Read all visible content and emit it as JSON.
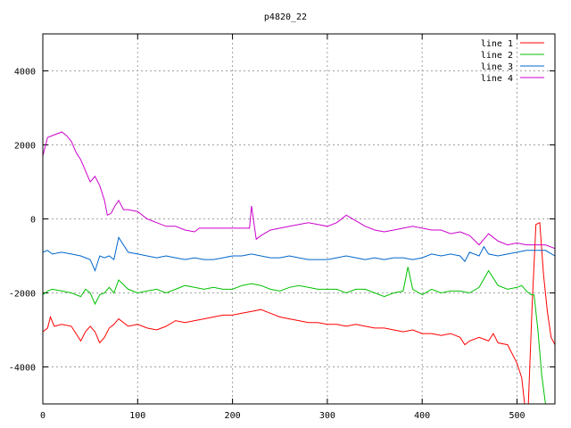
{
  "chart_data": {
    "type": "line",
    "title": "p4820_22",
    "xlabel": "",
    "ylabel": "",
    "xlim": [
      0,
      540
    ],
    "ylim": [
      -5000,
      5000
    ],
    "x_ticks": [
      0,
      100,
      200,
      300,
      400,
      500
    ],
    "y_ticks": [
      -4000,
      -2000,
      0,
      2000,
      4000
    ],
    "grid": true,
    "legend_position": "top-right",
    "series": [
      {
        "name": "line 1",
        "color": "#ff0000",
        "x": [
          0,
          5,
          8,
          12,
          20,
          30,
          35,
          40,
          45,
          50,
          55,
          60,
          65,
          70,
          75,
          80,
          90,
          100,
          110,
          120,
          130,
          140,
          150,
          160,
          170,
          180,
          190,
          200,
          210,
          220,
          230,
          240,
          250,
          260,
          270,
          280,
          290,
          300,
          310,
          320,
          330,
          340,
          350,
          360,
          370,
          380,
          390,
          400,
          410,
          420,
          430,
          440,
          445,
          450,
          460,
          470,
          475,
          480,
          490,
          500,
          505,
          508,
          512,
          516,
          520,
          524,
          528,
          532,
          536,
          540
        ],
        "y": [
          -3050,
          -2950,
          -2650,
          -2900,
          -2850,
          -2900,
          -3100,
          -3300,
          -3050,
          -2900,
          -3050,
          -3350,
          -3200,
          -2950,
          -2850,
          -2700,
          -2900,
          -2850,
          -2950,
          -3000,
          -2900,
          -2750,
          -2800,
          -2750,
          -2700,
          -2650,
          -2600,
          -2600,
          -2550,
          -2500,
          -2450,
          -2550,
          -2650,
          -2700,
          -2750,
          -2800,
          -2800,
          -2850,
          -2850,
          -2900,
          -2850,
          -2900,
          -2950,
          -2950,
          -3000,
          -3050,
          -3000,
          -3100,
          -3100,
          -3150,
          -3100,
          -3200,
          -3400,
          -3300,
          -3200,
          -3300,
          -3100,
          -3350,
          -3400,
          -3900,
          -4300,
          -5000,
          -5000,
          -2300,
          -150,
          -100,
          -1500,
          -2500,
          -3200,
          -3400
        ]
      },
      {
        "name": "line 2",
        "color": "#00c000",
        "x": [
          0,
          5,
          10,
          20,
          30,
          40,
          45,
          50,
          55,
          60,
          65,
          70,
          75,
          80,
          90,
          100,
          110,
          120,
          130,
          140,
          150,
          160,
          170,
          180,
          190,
          200,
          210,
          220,
          230,
          240,
          250,
          260,
          270,
          280,
          290,
          300,
          310,
          320,
          330,
          340,
          350,
          360,
          370,
          380,
          385,
          390,
          400,
          410,
          420,
          430,
          440,
          450,
          460,
          470,
          480,
          490,
          500,
          505,
          510,
          515,
          518,
          522,
          526,
          530,
          534,
          540
        ],
        "y": [
          -2050,
          -1950,
          -1900,
          -1950,
          -2000,
          -2100,
          -1900,
          -2000,
          -2300,
          -2050,
          -2000,
          -1850,
          -2000,
          -1650,
          -1900,
          -2000,
          -1950,
          -1900,
          -2000,
          -1900,
          -1800,
          -1850,
          -1900,
          -1850,
          -1900,
          -1900,
          -1800,
          -1750,
          -1800,
          -1900,
          -1950,
          -1850,
          -1800,
          -1850,
          -1900,
          -1900,
          -1900,
          -2000,
          -1900,
          -1900,
          -2000,
          -2100,
          -2000,
          -1950,
          -1300,
          -1900,
          -2050,
          -1900,
          -2000,
          -1950,
          -1950,
          -2000,
          -1850,
          -1400,
          -1800,
          -1900,
          -1850,
          -1800,
          -1950,
          -2050,
          -2050,
          -3000,
          -4200,
          -5000,
          -5000,
          -5000
        ]
      },
      {
        "name": "line 3",
        "color": "#0066cc",
        "x": [
          0,
          5,
          10,
          20,
          30,
          40,
          45,
          50,
          55,
          60,
          65,
          70,
          75,
          80,
          90,
          100,
          110,
          120,
          130,
          140,
          150,
          160,
          170,
          180,
          190,
          200,
          210,
          220,
          230,
          240,
          250,
          260,
          270,
          280,
          290,
          300,
          310,
          320,
          330,
          340,
          350,
          360,
          370,
          380,
          390,
          400,
          410,
          420,
          430,
          440,
          445,
          450,
          460,
          465,
          470,
          480,
          490,
          500,
          510,
          520,
          530,
          540
        ],
        "y": [
          -900,
          -850,
          -950,
          -900,
          -950,
          -1000,
          -1050,
          -1100,
          -1400,
          -1000,
          -1050,
          -1000,
          -1100,
          -500,
          -900,
          -950,
          -1000,
          -1050,
          -1000,
          -1050,
          -1100,
          -1050,
          -1100,
          -1100,
          -1050,
          -1000,
          -1000,
          -950,
          -1000,
          -1050,
          -1050,
          -1000,
          -1050,
          -1100,
          -1100,
          -1100,
          -1050,
          -1000,
          -1050,
          -1100,
          -1050,
          -1100,
          -1050,
          -1050,
          -1100,
          -1050,
          -950,
          -1000,
          -950,
          -1000,
          -1150,
          -900,
          -1000,
          -750,
          -950,
          -1000,
          -950,
          -900,
          -850,
          -850,
          -850,
          -1000
        ]
      },
      {
        "name": "line 4",
        "color": "#cc00cc",
        "x": [
          0,
          5,
          10,
          20,
          25,
          30,
          35,
          40,
          45,
          50,
          55,
          60,
          65,
          68,
          72,
          76,
          80,
          85,
          90,
          100,
          110,
          120,
          130,
          140,
          150,
          160,
          165,
          170,
          180,
          190,
          200,
          210,
          218,
          220,
          225,
          230,
          240,
          250,
          260,
          270,
          280,
          290,
          300,
          310,
          320,
          330,
          340,
          350,
          360,
          370,
          380,
          390,
          400,
          410,
          420,
          430,
          440,
          450,
          460,
          470,
          480,
          490,
          500,
          510,
          520,
          530,
          540
        ],
        "y": [
          1700,
          2200,
          2250,
          2350,
          2250,
          2100,
          1800,
          1600,
          1300,
          1000,
          1150,
          900,
          500,
          100,
          150,
          350,
          500,
          250,
          250,
          200,
          0,
          -100,
          -200,
          -200,
          -300,
          -350,
          -250,
          -250,
          -250,
          -250,
          -250,
          -250,
          -250,
          350,
          -550,
          -450,
          -300,
          -250,
          -200,
          -150,
          -100,
          -150,
          -200,
          -100,
          100,
          -50,
          -200,
          -300,
          -350,
          -300,
          -250,
          -200,
          -250,
          -300,
          -300,
          -400,
          -350,
          -450,
          -700,
          -400,
          -600,
          -700,
          -650,
          -700,
          -700,
          -700,
          -800
        ]
      }
    ]
  }
}
